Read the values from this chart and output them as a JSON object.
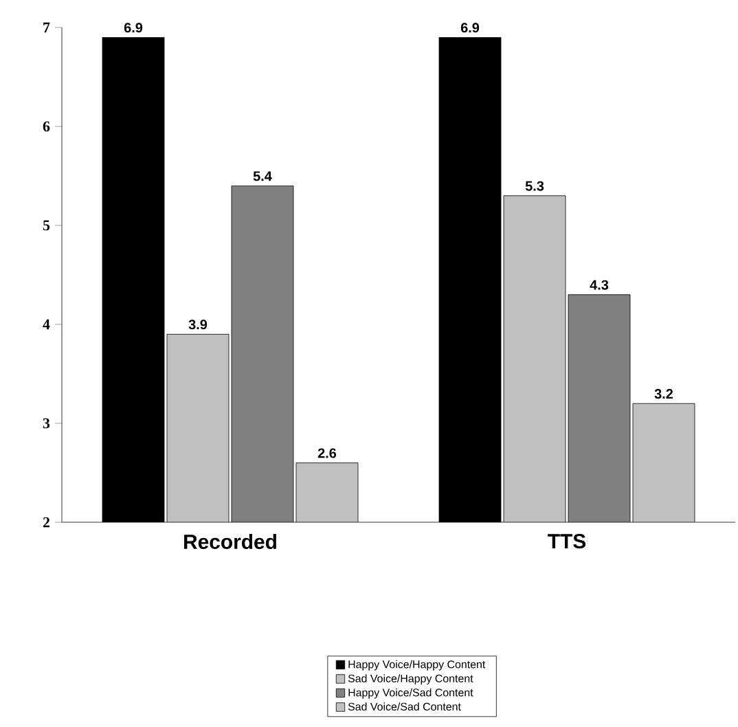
{
  "chart_data": {
    "type": "bar",
    "categories": [
      "Recorded",
      "TTS"
    ],
    "series": [
      {
        "name": "Happy Voice/Happy Content",
        "color": "#000000",
        "values": [
          6.9,
          6.9
        ]
      },
      {
        "name": "Sad Voice/Happy Content",
        "color": "#c0c0c0",
        "values": [
          3.9,
          5.3
        ]
      },
      {
        "name": "Happy Voice/Sad Content",
        "color": "#808080",
        "values": [
          5.4,
          4.3
        ]
      },
      {
        "name": "Sad Voice/Sad Content",
        "color": "#c0c0c0",
        "values": [
          2.6,
          3.2
        ]
      }
    ],
    "ylim": [
      2,
      7
    ],
    "yticks": [
      2,
      3,
      4,
      5,
      6,
      7
    ],
    "grid": false,
    "legend": "bottom",
    "data_labels": true
  }
}
